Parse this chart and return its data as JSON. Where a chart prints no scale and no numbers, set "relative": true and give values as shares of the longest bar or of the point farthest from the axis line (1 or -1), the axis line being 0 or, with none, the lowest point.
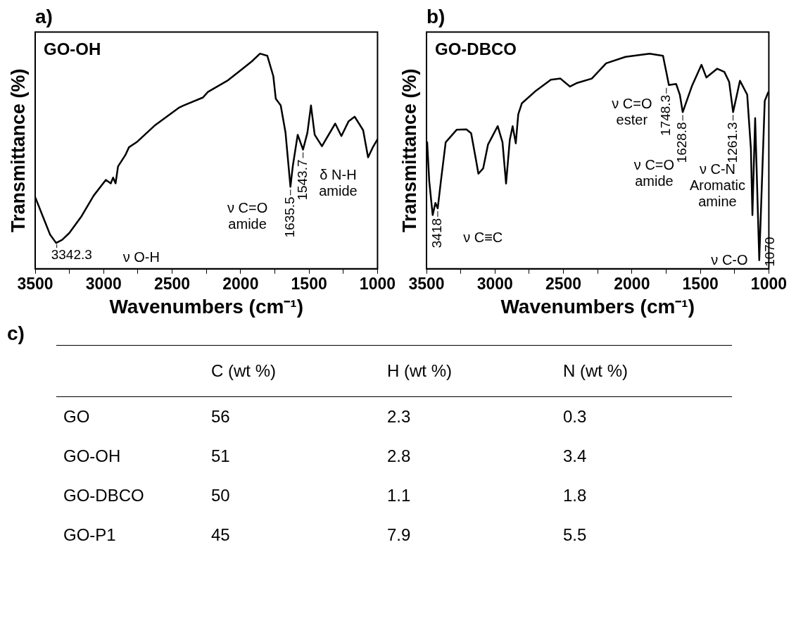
{
  "chart_data": [
    {
      "type": "line",
      "title": "a)",
      "xlabel": "Wavenumbers (cm⁻¹)",
      "ylabel": "Transmittance (%)",
      "relative": true,
      "grid": false,
      "legend": false,
      "marker": "none",
      "line_style": "solid",
      "xlim": [
        3500,
        1000
      ],
      "xticks": [
        3500,
        {
          "value": 3250,
          "label": null
        },
        3000,
        {
          "value": 2750,
          "label": null
        },
        2500,
        {
          "value": 2250,
          "label": null
        },
        2000,
        {
          "value": 1750,
          "label": null
        },
        1500,
        {
          "value": 1250,
          "label": null
        },
        1000
      ],
      "x": [
        3498,
        3445,
        3392,
        3347,
        3303,
        3250,
        3161,
        3073,
        2984,
        2948,
        2931,
        2913,
        2895,
        2842,
        2815,
        2754,
        2629,
        2452,
        2417,
        2275,
        2239,
        2097,
        1991,
        1920,
        1858,
        1805,
        1761,
        1743,
        1707,
        1672,
        1636,
        1619,
        1583,
        1544,
        1512,
        1486,
        1459,
        1406,
        1309,
        1264,
        1211,
        1167,
        1105,
        1069,
        1034,
        1002
      ],
      "series": [
        {
          "name": "GO-OH",
          "color": "#000000",
          "values": [
            0.33,
            0.245,
            0.16,
            0.12,
            0.135,
            0.167,
            0.245,
            0.34,
            0.413,
            0.397,
            0.424,
            0.397,
            0.476,
            0.528,
            0.565,
            0.591,
            0.665,
            0.748,
            0.759,
            0.796,
            0.822,
            0.874,
            0.927,
            0.963,
            1.0,
            0.99,
            0.895,
            0.79,
            0.759,
            0.633,
            0.381,
            0.476,
            0.623,
            0.554,
            0.633,
            0.759,
            0.623,
            0.57,
            0.675,
            0.617,
            0.686,
            0.707,
            0.644,
            0.518,
            0.565,
            0.6
          ]
        }
      ],
      "annotations": [
        {
          "text": "3342.3",
          "x": 3342.3,
          "y": 0.12
        },
        {
          "text": "1635.5",
          "x": 1635.5,
          "y": 0.381
        },
        {
          "text": "1543.7",
          "x": 1543.7,
          "y": 0.554
        },
        "ν O-H",
        "ν C=O\namide",
        "δ N-H\namide"
      ]
    },
    {
      "type": "line",
      "title": "b)",
      "xlabel": "Wavenumbers (cm⁻¹)",
      "ylabel": "Transmittance (%)",
      "relative": true,
      "grid": false,
      "legend": false,
      "marker": "none",
      "line_style": "solid",
      "xlim": [
        3500,
        1000
      ],
      "xticks": [
        3500,
        {
          "value": 3250,
          "label": null
        },
        3000,
        {
          "value": 2750,
          "label": null
        },
        2500,
        {
          "value": 2250,
          "label": null
        },
        2000,
        {
          "value": 1750,
          "label": null
        },
        1500,
        {
          "value": 1250,
          "label": null
        },
        1000
      ],
      "x": [
        3495,
        3480,
        3455,
        3435,
        3418,
        3395,
        3360,
        3280,
        3209,
        3174,
        3139,
        3121,
        3086,
        3051,
        2980,
        2945,
        2919,
        2892,
        2871,
        2848,
        2830,
        2804,
        2698,
        2592,
        2522,
        2452,
        2399,
        2293,
        2188,
        2047,
        1871,
        1773,
        1747,
        1730,
        1677,
        1650,
        1629,
        1562,
        1492,
        1456,
        1377,
        1325,
        1290,
        1261,
        1211,
        1158,
        1131,
        1120,
        1100,
        1070,
        1030,
        1005
      ],
      "series": [
        {
          "name": "GO-DBCO",
          "color": "#000000",
          "values": [
            0.588,
            0.407,
            0.25,
            0.306,
            0.281,
            0.407,
            0.588,
            0.646,
            0.648,
            0.63,
            0.507,
            0.442,
            0.467,
            0.577,
            0.663,
            0.588,
            0.396,
            0.598,
            0.663,
            0.583,
            0.718,
            0.769,
            0.829,
            0.879,
            0.884,
            0.847,
            0.864,
            0.884,
            0.955,
            0.985,
            1.0,
            0.99,
            0.909,
            0.854,
            0.859,
            0.809,
            0.728,
            0.849,
            0.948,
            0.889,
            0.93,
            0.915,
            0.869,
            0.728,
            0.874,
            0.809,
            0.557,
            0.25,
            0.7,
            0.04,
            0.78,
            0.82
          ]
        }
      ],
      "annotations": [
        {
          "text": "3418",
          "x": 3418,
          "y": 0.281
        },
        {
          "text": "1748.3",
          "x": 1748.3,
          "y": 0.854
        },
        {
          "text": "1628.8",
          "x": 1628.8,
          "y": 0.728
        },
        {
          "text": "1261.3",
          "x": 1261.3,
          "y": 0.728
        },
        {
          "text": "1070",
          "x": 1070,
          "y": 0.04
        },
        "ν C≡C",
        "ν C=O\nester",
        "ν C=O\namide",
        "ν C-N\nAromatic\namine",
        "ν C-O"
      ]
    },
    {
      "type": "heatmap",
      "title": "c)",
      "data_labels": true,
      "categories": [
        "C (wt %)",
        "H (wt %)",
        "N (wt %)"
      ],
      "y_categories": [
        "GO",
        "GO-OH",
        "GO-DBCO",
        "GO-P1"
      ],
      "cells": [
        [
          56,
          2.3,
          0.3
        ],
        [
          51,
          2.8,
          3.4
        ],
        [
          50,
          1.1,
          1.8
        ],
        [
          45,
          7.9,
          5.5
        ]
      ]
    }
  ]
}
